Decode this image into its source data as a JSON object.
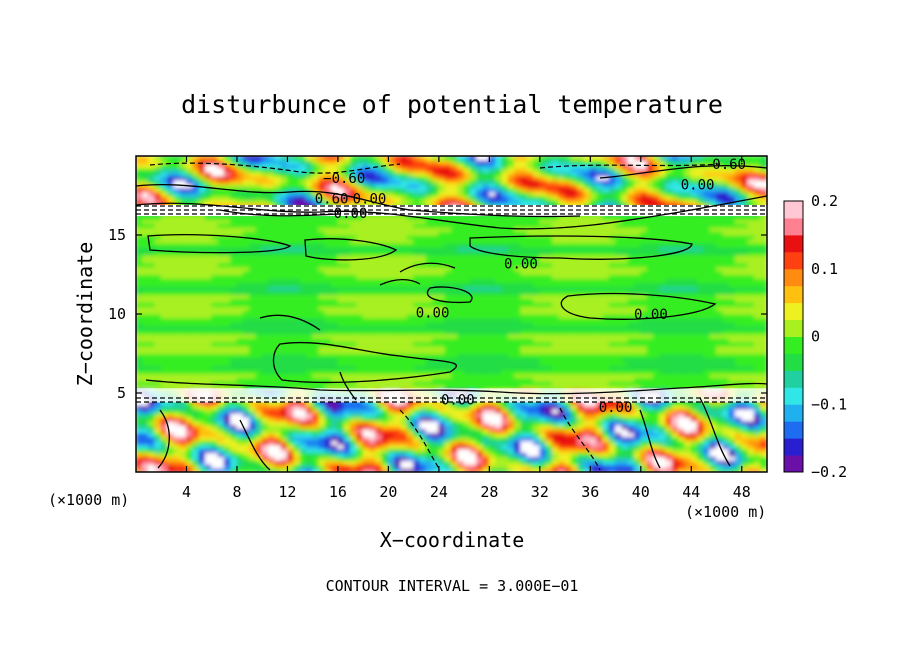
{
  "chart_data": {
    "type": "heatmap",
    "title": "disturbunce of potential temperature",
    "xlabel": "X−coordinate",
    "ylabel": "Z−coordinate",
    "x_unit": "(×1000 m)",
    "y_unit": "(×1000 m)",
    "footer": "CONTOUR INTERVAL = 3.000E−01",
    "xlim": [
      0,
      50
    ],
    "ylim": [
      0,
      20
    ],
    "x_ticks": [
      4,
      8,
      12,
      16,
      20,
      24,
      28,
      32,
      36,
      40,
      44,
      48
    ],
    "y_ticks": [
      5,
      10,
      15
    ],
    "colorbar": {
      "range": [
        -0.2,
        0.2
      ],
      "ticks": [
        {
          "value": 0.2,
          "label": "0.2"
        },
        {
          "value": 0.1,
          "label": "0.1"
        },
        {
          "value": 0,
          "label": "0"
        },
        {
          "value": -0.1,
          "label": "−0.1"
        },
        {
          "value": -0.2,
          "label": "−0.2"
        }
      ],
      "colors": [
        "#6a0fa8",
        "#2a1fd0",
        "#1e6cf0",
        "#20b0f0",
        "#30e6e6",
        "#20d0a0",
        "#22dd44",
        "#34ee22",
        "#a8f020",
        "#eef020",
        "#ffc010",
        "#ff8c10",
        "#ff4010",
        "#e81010",
        "#ff8090",
        "#ffc8d4"
      ]
    },
    "contour_labels": [
      {
        "text": "0.60",
        "x": 47.0,
        "z": 19.5
      },
      {
        "text": "−0.60",
        "x": 16.5,
        "z": 18.6
      },
      {
        "text": "0.00",
        "x": 44.5,
        "z": 18.2
      },
      {
        "text": "0.60",
        "x": 15.5,
        "z": 17.3
      },
      {
        "text": "0.00",
        "x": 18.5,
        "z": 17.3
      },
      {
        "text": "0.00",
        "x": 17.0,
        "z": 16.4
      },
      {
        "text": "0.00",
        "x": 30.5,
        "z": 13.2
      },
      {
        "text": "0.00",
        "x": 23.5,
        "z": 10.1
      },
      {
        "text": "0.00",
        "x": 40.8,
        "z": 10.0
      },
      {
        "text": "0.00",
        "x": 25.5,
        "z": 4.6
      },
      {
        "text": "0.00",
        "x": 38.0,
        "z": 4.1
      }
    ]
  }
}
